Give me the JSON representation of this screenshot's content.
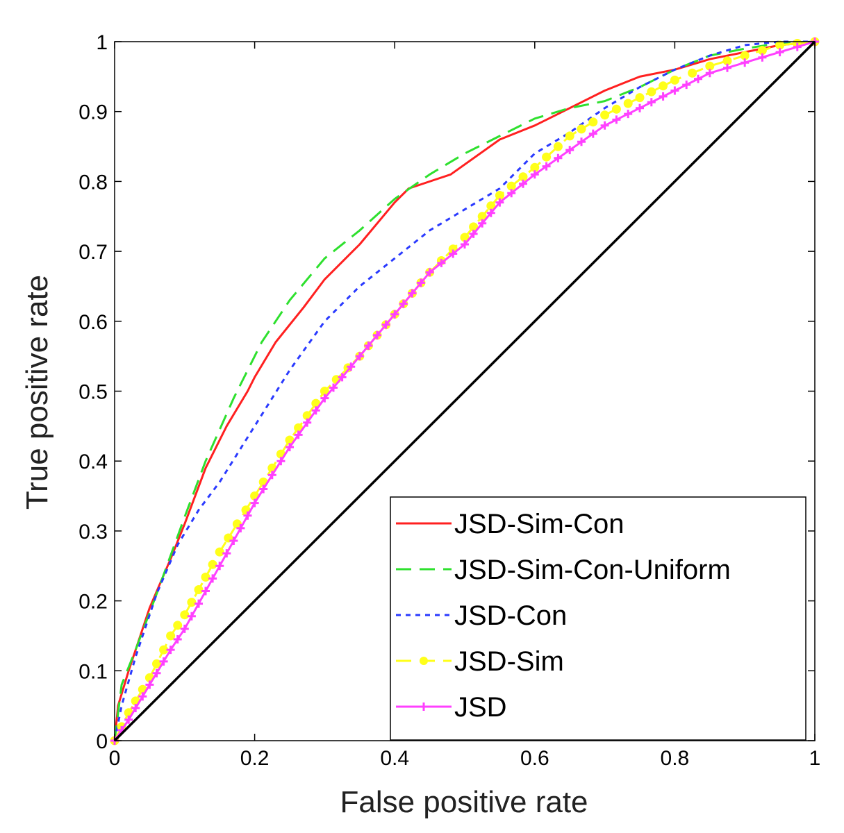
{
  "chart_data": {
    "type": "line",
    "title": "",
    "xlabel": "False positive rate",
    "ylabel": "True positive rate",
    "xlim": [
      0,
      1
    ],
    "ylim": [
      0,
      1
    ],
    "xticks": [
      0,
      0.2,
      0.4,
      0.6,
      0.8,
      1
    ],
    "yticks": [
      0,
      0.1,
      0.2,
      0.3,
      0.4,
      0.5,
      0.6,
      0.7,
      0.8,
      0.9,
      1
    ],
    "xtick_labels": [
      "0",
      "0.2",
      "0.4",
      "0.6",
      "0.8",
      "1"
    ],
    "ytick_labels": [
      "0",
      "0.1",
      "0.2",
      "0.3",
      "0.4",
      "0.5",
      "0.6",
      "0.7",
      "0.8",
      "0.9",
      "1"
    ],
    "grid": false,
    "legend_position": "bottom-right",
    "series": [
      {
        "name": "JSD-Sim-Con",
        "color": "#ff2020",
        "style": "solid",
        "marker": "none",
        "x": [
          0,
          0.005,
          0.02,
          0.05,
          0.08,
          0.1,
          0.13,
          0.16,
          0.19,
          0.2,
          0.23,
          0.27,
          0.3,
          0.35,
          0.4,
          0.42,
          0.48,
          0.55,
          0.6,
          0.62,
          0.7,
          0.75,
          0.8,
          0.85,
          0.9,
          0.95,
          1
        ],
        "y": [
          0,
          0.05,
          0.1,
          0.19,
          0.26,
          0.31,
          0.39,
          0.45,
          0.5,
          0.52,
          0.57,
          0.62,
          0.66,
          0.71,
          0.77,
          0.79,
          0.81,
          0.86,
          0.88,
          0.89,
          0.93,
          0.95,
          0.96,
          0.975,
          0.985,
          0.995,
          1
        ]
      },
      {
        "name": "JSD-Sim-Con-Uniform",
        "color": "#2ee02e",
        "style": "dashed",
        "marker": "none",
        "x": [
          0,
          0.01,
          0.03,
          0.06,
          0.1,
          0.13,
          0.17,
          0.21,
          0.25,
          0.3,
          0.35,
          0.4,
          0.45,
          0.5,
          0.55,
          0.6,
          0.65,
          0.7,
          0.75,
          0.8,
          0.85,
          0.9,
          0.95,
          1
        ],
        "y": [
          0,
          0.08,
          0.13,
          0.21,
          0.32,
          0.4,
          0.49,
          0.57,
          0.63,
          0.69,
          0.73,
          0.775,
          0.81,
          0.84,
          0.865,
          0.89,
          0.905,
          0.915,
          0.935,
          0.96,
          0.98,
          0.99,
          0.998,
          1
        ]
      },
      {
        "name": "JSD-Con",
        "color": "#2a3aff",
        "style": "dotted",
        "marker": "none",
        "x": [
          0,
          0.01,
          0.03,
          0.06,
          0.09,
          0.12,
          0.15,
          0.2,
          0.25,
          0.3,
          0.35,
          0.4,
          0.45,
          0.5,
          0.55,
          0.6,
          0.65,
          0.7,
          0.75,
          0.8,
          0.85,
          0.9,
          0.95,
          1
        ],
        "y": [
          0,
          0.05,
          0.12,
          0.21,
          0.28,
          0.33,
          0.37,
          0.45,
          0.53,
          0.6,
          0.65,
          0.69,
          0.73,
          0.76,
          0.79,
          0.84,
          0.87,
          0.905,
          0.935,
          0.96,
          0.98,
          0.995,
          1,
          1
        ]
      },
      {
        "name": "JSD-Sim",
        "color": "#ffff1a",
        "style": "dashed",
        "marker": "circle",
        "x": [
          0,
          0.02,
          0.05,
          0.08,
          0.1,
          0.15,
          0.2,
          0.25,
          0.3,
          0.35,
          0.4,
          0.45,
          0.5,
          0.55,
          0.6,
          0.65,
          0.7,
          0.75,
          0.8,
          0.85,
          0.9,
          0.95,
          1
        ],
        "y": [
          0,
          0.04,
          0.09,
          0.15,
          0.18,
          0.27,
          0.35,
          0.43,
          0.5,
          0.55,
          0.61,
          0.67,
          0.72,
          0.78,
          0.82,
          0.865,
          0.895,
          0.92,
          0.945,
          0.965,
          0.98,
          0.995,
          1
        ]
      },
      {
        "name": "JSD",
        "color": "#ff40ff",
        "style": "solid",
        "marker": "plus",
        "x": [
          0,
          0.02,
          0.05,
          0.08,
          0.1,
          0.15,
          0.2,
          0.25,
          0.3,
          0.35,
          0.4,
          0.45,
          0.5,
          0.55,
          0.6,
          0.65,
          0.7,
          0.75,
          0.8,
          0.85,
          0.9,
          0.95,
          1
        ],
        "y": [
          0,
          0.03,
          0.08,
          0.13,
          0.16,
          0.25,
          0.34,
          0.42,
          0.49,
          0.55,
          0.61,
          0.67,
          0.71,
          0.77,
          0.81,
          0.845,
          0.88,
          0.905,
          0.93,
          0.955,
          0.97,
          0.985,
          1
        ]
      },
      {
        "name": "",
        "color": "#000000",
        "style": "solid",
        "marker": "none",
        "x": [
          0,
          1
        ],
        "y": [
          0,
          1
        ]
      }
    ]
  }
}
